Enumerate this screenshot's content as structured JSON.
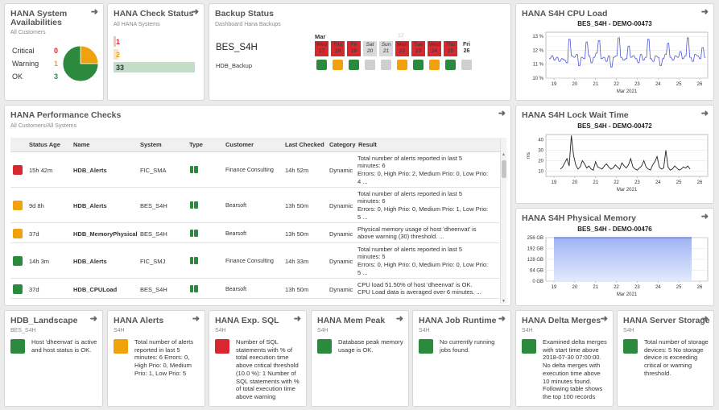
{
  "availability": {
    "title": "HANA System Availabilities",
    "subtitle": "All Customers",
    "items": [
      {
        "label": "Critical",
        "count": "0"
      },
      {
        "label": "Warning",
        "count": "1"
      },
      {
        "label": "OK",
        "count": "3"
      }
    ],
    "colors": {
      "critical": "#d8282f",
      "warning": "#f0a20c",
      "ok": "#2b8a3e"
    },
    "chart_data": {
      "type": "pie",
      "categories": [
        "Critical",
        "Warning",
        "OK"
      ],
      "values": [
        0,
        1,
        3
      ]
    }
  },
  "check_status": {
    "title": "HANA Check Status",
    "subtitle": "All HANA Systems",
    "bars": [
      {
        "value": "1",
        "color": "#d8282f"
      },
      {
        "value": "2",
        "color": "#f0a20c"
      },
      {
        "value": "33",
        "color": "#2b8a3e"
      }
    ]
  },
  "backup": {
    "title": "Backup Status",
    "subtitle": "Dashboard Hana Backups",
    "system": "BES_S4H",
    "backup_type": "HDB_Backup",
    "month": "Mar",
    "faded": "12",
    "days": [
      {
        "wd": "Wed",
        "d": "17",
        "cell": "red",
        "status": "green"
      },
      {
        "wd": "Thu",
        "d": "18",
        "cell": "red",
        "status": "orange"
      },
      {
        "wd": "Fri",
        "d": "19",
        "cell": "red",
        "status": "green"
      },
      {
        "wd": "Sat",
        "d": "20",
        "cell": "grey",
        "status": "grey"
      },
      {
        "wd": "Sun",
        "d": "21",
        "cell": "grey",
        "status": "grey"
      },
      {
        "wd": "Mon",
        "d": "22",
        "cell": "red",
        "status": "orange"
      },
      {
        "wd": "Tue",
        "d": "23",
        "cell": "red",
        "status": "green"
      },
      {
        "wd": "Wed",
        "d": "24",
        "cell": "red",
        "status": "orange"
      },
      {
        "wd": "Thu",
        "d": "25",
        "cell": "red",
        "status": "green"
      },
      {
        "wd": "Fri",
        "d": "26",
        "cell": "none",
        "status": "grey"
      }
    ]
  },
  "cpu": {
    "title": "HANA S4H CPU Load",
    "chart_data": {
      "type": "line",
      "title": "BES_S4H - DEMO-00473",
      "xlabel": "Mar 2021",
      "ylabel": "",
      "x_ticks": [
        "19",
        "20",
        "21",
        "22",
        "23",
        "24",
        "25",
        "26"
      ],
      "y_ticks": [
        "13 %",
        "12 %",
        "11 %",
        "10 %"
      ],
      "ylim": [
        10,
        13.3
      ],
      "series": [
        {
          "values": [
            11.4,
            11.6,
            11.3,
            11.5,
            11.2,
            11.4,
            11.3,
            11.1,
            12.8,
            11.6,
            11.5,
            11.7,
            10.9,
            11.5,
            11.4,
            12.6,
            11.6,
            11.1,
            11.5,
            11.8,
            12.7,
            11.4,
            11.5,
            11.2,
            11.6,
            10.8,
            11.5,
            11.6,
            12.9,
            11.5,
            11.3,
            11.4,
            12.3,
            11.5,
            11.6,
            11.4,
            11.1,
            11.7,
            11.3,
            11.5,
            12.8,
            11.4,
            11.2,
            11.6,
            11.5,
            10.9,
            11.4,
            11.7,
            12.5,
            11.5,
            11.3,
            11.6,
            11.5,
            11.9,
            11.4,
            11.6,
            12.9,
            11.5,
            11.2,
            11.7,
            11.6,
            11.4,
            12.2,
            11.5
          ]
        }
      ]
    }
  },
  "lockwait": {
    "title": "HANA S4H Lock Wait Time",
    "chart_data": {
      "type": "line",
      "title": "BES_S4H - DEMO-00472",
      "xlabel": "Mar 2021",
      "ylabel": "ms",
      "x_ticks": [
        "19",
        "20",
        "21",
        "22",
        "23",
        "24",
        "25",
        "26"
      ],
      "y_ticks": [
        "40",
        "30",
        "20",
        "10"
      ],
      "ylim": [
        5,
        45
      ],
      "series": [
        {
          "values": [
            12,
            14,
            18,
            22,
            15,
            44,
            25,
            16,
            12,
            14,
            20,
            17,
            13,
            15,
            12,
            11,
            19,
            14,
            13,
            12,
            15,
            17,
            14,
            12,
            13,
            16,
            14,
            12,
            18,
            15,
            13,
            16,
            22,
            14,
            12,
            11,
            13,
            15,
            20,
            14,
            12,
            11,
            16,
            19,
            24,
            14,
            12,
            13,
            30,
            14,
            11,
            12,
            15,
            13,
            11,
            12,
            14,
            13,
            15,
            12
          ]
        }
      ]
    }
  },
  "memory": {
    "title": "HANA S4H Physical Memory",
    "chart_data": {
      "type": "area",
      "title": "BES_S4H - DEMO-00476",
      "xlabel": "Mar 2021",
      "ylabel": "",
      "x_ticks": [
        "19",
        "20",
        "21",
        "22",
        "23",
        "24",
        "25",
        "26"
      ],
      "y_ticks": [
        "256 GB",
        "192 GB",
        "128 GB",
        "64 GB",
        "0 GB"
      ],
      "ylim": [
        0,
        256
      ],
      "series": [
        {
          "values": [
            256,
            256
          ]
        }
      ]
    }
  },
  "perf": {
    "title": "HANA Performance Checks",
    "subtitle": "All Customers/All Systems",
    "headers": [
      "Status Age",
      "Name",
      "System",
      "Type",
      "Customer",
      "Last Checked",
      "Category",
      "Result"
    ],
    "rows": [
      {
        "status": "red",
        "age": "15h 42m",
        "name": "HDB_Alerts",
        "system": "FIC_SMA",
        "customer": "Finance Consulting",
        "checked": "14h 52m",
        "category": "Dynamic",
        "result": [
          "Total number of alerts reported in last 5",
          "minutes: 6",
          "Errors: 0, High Prio: 2, Medium Prio: 0, Low Prio:",
          "4 ..."
        ]
      },
      {
        "status": "orange",
        "age": "9d 8h",
        "name": "HDB_Alerts",
        "system": "BES_S4H",
        "customer": "Bearsoft",
        "checked": "13h 50m",
        "category": "Dynamic",
        "result": [
          "Total number of alerts reported in last 5",
          "minutes: 6",
          "Errors: 0, High Prio: 0, Medium Prio: 1, Low Prio:",
          "5 ..."
        ]
      },
      {
        "status": "orange",
        "age": "37d",
        "name": "HDB_MemoryPhysical",
        "system": "BES_S4H",
        "customer": "Bearsoft",
        "checked": "13h 50m",
        "category": "Dynamic",
        "result": [
          "Physical memory usage of host 'dheenvat' is",
          "above warning (30) threshold. ..."
        ]
      },
      {
        "status": "green",
        "age": "14h 3m",
        "name": "HDB_Alerts",
        "system": "FIC_SMJ",
        "customer": "Finance Consulting",
        "checked": "14h 33m",
        "category": "Dynamic",
        "result": [
          "Total number of alerts reported in last 5",
          "minutes: 5",
          "Errors: 0, High Prio: 0, Medium Prio: 0, Low Prio:",
          "5 ..."
        ]
      },
      {
        "status": "green",
        "age": "37d",
        "name": "HDB_CPULoad",
        "system": "BES_S4H",
        "customer": "Bearsoft",
        "checked": "13h 50m",
        "category": "Dynamic",
        "result": [
          "CPU load 51.50% of host 'dheenvat' is OK.",
          "CPU Load data is averaged over 6 minutes. ..."
        ]
      }
    ]
  },
  "bottom": [
    {
      "title": "HDB_Landscape",
      "sub": "BES_S4H",
      "status": "green",
      "text": "Host 'dheenvat' is active and host status is OK."
    },
    {
      "title": "HANA Alerts",
      "sub": "S4H",
      "status": "orange",
      "text": "Total number of alerts reported in last 5 minutes: 6 Errors: 0, High Prio: 0, Medium Prio: 1, Low Prio: 5"
    },
    {
      "title": "HANA Exp. SQL",
      "sub": "S4H",
      "status": "red",
      "text": "Number of SQL statements with % of total execution time above critical threshold (10.0 %): 1 Number of SQL statements with % of total execution time above warning"
    },
    {
      "title": "HANA Mem Peak",
      "sub": "S4H",
      "status": "green",
      "text": "Database peak memory usage is OK."
    },
    {
      "title": "HANA Job Runtime",
      "sub": "S4H",
      "status": "green",
      "text": "No currently running jobs found."
    },
    {
      "title": "HANA Delta Merges",
      "sub": "S4H",
      "status": "green",
      "text": "Examined delta merges with start time above 2018-07-30 07:00:00. No delta merges with execution time above 10 minutes found. Following table shows the top 100 records"
    },
    {
      "title": "HANA Server Storage",
      "sub": "S4H",
      "status": "green",
      "text": "Total number of storage devices: 5 No storage device is exceeding critical or warning threshold."
    }
  ]
}
